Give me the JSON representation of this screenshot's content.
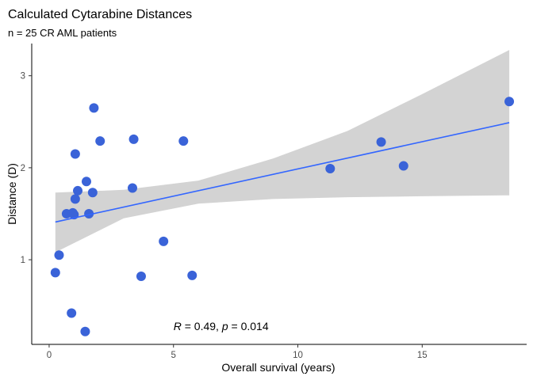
{
  "chart_data": {
    "type": "scatter",
    "title": "Calculated Cytarabine Distances",
    "subtitle": "n = 25 CR AML patients",
    "xlabel": "Overall survival (years)",
    "ylabel": "Distance (D)",
    "xlim": [
      -0.7,
      19.2
    ],
    "ylim": [
      0.08,
      3.35
    ],
    "xticks": [
      0,
      5,
      10,
      15
    ],
    "yticks": [
      1,
      2,
      3
    ],
    "grid": false,
    "legend": "none",
    "points": [
      {
        "x": 0.25,
        "y": 0.86
      },
      {
        "x": 0.4,
        "y": 1.05
      },
      {
        "x": 0.7,
        "y": 1.5
      },
      {
        "x": 0.9,
        "y": 0.42
      },
      {
        "x": 0.95,
        "y": 1.51
      },
      {
        "x": 1.0,
        "y": 1.49
      },
      {
        "x": 1.05,
        "y": 1.66
      },
      {
        "x": 1.05,
        "y": 2.15
      },
      {
        "x": 1.15,
        "y": 1.75
      },
      {
        "x": 1.45,
        "y": 0.22
      },
      {
        "x": 1.5,
        "y": 1.85
      },
      {
        "x": 1.6,
        "y": 1.5
      },
      {
        "x": 1.75,
        "y": 1.73
      },
      {
        "x": 1.8,
        "y": 2.65
      },
      {
        "x": 2.05,
        "y": 2.29
      },
      {
        "x": 3.35,
        "y": 1.78
      },
      {
        "x": 3.4,
        "y": 2.31
      },
      {
        "x": 3.7,
        "y": 0.82
      },
      {
        "x": 4.6,
        "y": 1.2
      },
      {
        "x": 5.4,
        "y": 2.29
      },
      {
        "x": 5.75,
        "y": 0.83
      },
      {
        "x": 11.3,
        "y": 1.99
      },
      {
        "x": 13.35,
        "y": 2.28
      },
      {
        "x": 14.25,
        "y": 2.02
      },
      {
        "x": 18.5,
        "y": 2.72
      }
    ],
    "regression": {
      "x0": 0.25,
      "y0": 1.41,
      "x1": 18.5,
      "y1": 2.49
    },
    "confidence_band": {
      "x": [
        0.25,
        3,
        6,
        9,
        12,
        15,
        18.5
      ],
      "upper": [
        1.73,
        1.76,
        1.86,
        2.1,
        2.4,
        2.8,
        3.28
      ],
      "lower": [
        1.08,
        1.45,
        1.61,
        1.66,
        1.68,
        1.69,
        1.7
      ]
    },
    "annotation": {
      "x": 5.0,
      "y": 0.28,
      "segments": [
        {
          "text": "R",
          "italic": true
        },
        {
          "text": " = 0.49, ",
          "italic": false
        },
        {
          "text": "p",
          "italic": true
        },
        {
          "text": " = 0.014",
          "italic": false
        }
      ]
    },
    "colors": {
      "points": "#3a63d8",
      "line": "#3366ff",
      "band": "#d3d3d3"
    }
  }
}
